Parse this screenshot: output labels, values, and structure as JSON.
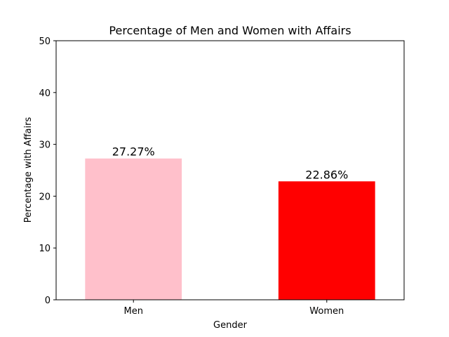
{
  "chart_data": {
    "type": "bar",
    "title": "Percentage of Men and Women with Affairs",
    "xlabel": "Gender",
    "ylabel": "Percentage with Affairs",
    "categories": [
      "Men",
      "Women"
    ],
    "values": [
      27.27,
      22.86
    ],
    "data_labels": [
      "27.27%",
      "22.86%"
    ],
    "colors": [
      "#ffc0cb",
      "#ff0000"
    ],
    "ylim": [
      0,
      50
    ],
    "yticks": [
      0,
      10,
      20,
      30,
      40,
      50
    ],
    "ytick_labels": [
      "0",
      "10",
      "20",
      "30",
      "40",
      "50"
    ],
    "grid": false,
    "legend": "none"
  }
}
